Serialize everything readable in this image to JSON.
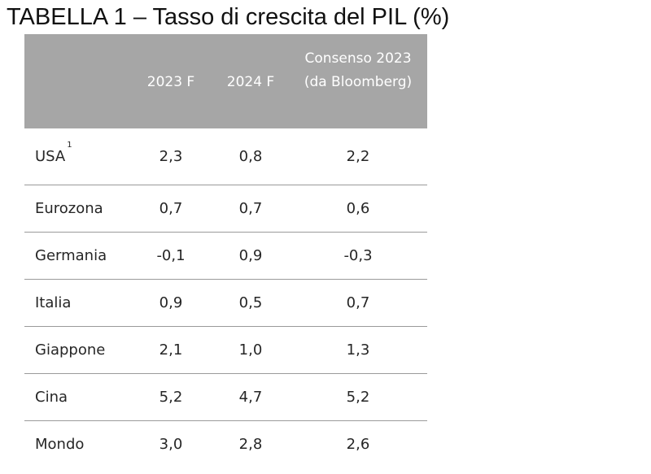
{
  "title": "TABELLA 1 – Tasso di crescita del PIL (%)",
  "table": {
    "headers": [
      "",
      "2023 F",
      "2024 F",
      "Consenso 2023 (da Bloomberg)"
    ],
    "rows": [
      {
        "label": "USA",
        "footnote": "1",
        "v2023": "2,3",
        "v2024": "0,8",
        "consensus": "2,2"
      },
      {
        "label": "Eurozona",
        "v2023": "0,7",
        "v2024": "0,7",
        "consensus": "0,6"
      },
      {
        "label": "Germania",
        "v2023": "-0,1",
        "v2024": "0,9",
        "consensus": "-0,3"
      },
      {
        "label": "Italia",
        "v2023": "0,9",
        "v2024": "0,5",
        "consensus": "0,7"
      },
      {
        "label": "Giappone",
        "v2023": "2,1",
        "v2024": "1,0",
        "consensus": "1,3"
      },
      {
        "label": "Cina",
        "v2023": "5,2",
        "v2024": "4,7",
        "consensus": "5,2"
      },
      {
        "label": "Mondo",
        "v2023": "3,0",
        "v2024": "2,8",
        "consensus": "2,6"
      }
    ]
  },
  "colors": {
    "header_bg": "#a6a6a6",
    "header_text": "#ffffff",
    "row_divider": "#9a9a9a"
  }
}
